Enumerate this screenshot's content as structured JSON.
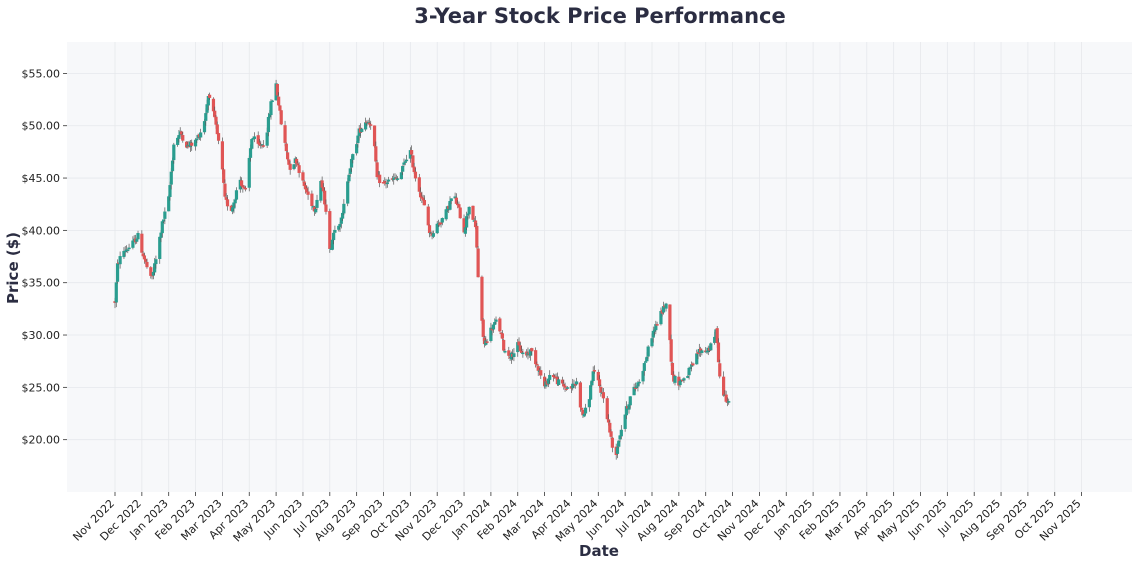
{
  "chart_data": {
    "type": "candlestick",
    "title": "3-Year Stock Price Performance",
    "xlabel": "Date",
    "ylabel": "Price ($)",
    "ylim": [
      15,
      58
    ],
    "yticks": [
      20,
      25,
      30,
      35,
      40,
      45,
      50,
      55
    ],
    "ytick_labels": [
      "$20.00",
      "$25.00",
      "$30.00",
      "$35.00",
      "$40.00",
      "$45.00",
      "$50.00",
      "$55.00"
    ],
    "xticks": [
      "Nov 2022",
      "Dec 2022",
      "Jan 2023",
      "Feb 2023",
      "Mar 2023",
      "Apr 2023",
      "May 2023",
      "Jun 2023",
      "Jul 2023",
      "Aug 2023",
      "Sep 2023",
      "Oct 2023",
      "Nov 2023",
      "Dec 2023",
      "Jan 2024",
      "Feb 2024",
      "Mar 2024",
      "Apr 2024",
      "May 2024",
      "Jun 2024",
      "Jul 2024",
      "Aug 2024",
      "Sep 2024",
      "Oct 2024",
      "Nov 2024",
      "Dec 2024",
      "Jan 2025",
      "Feb 2025",
      "Mar 2025",
      "Apr 2025",
      "May 2025",
      "Jun 2025",
      "Jul 2025",
      "Aug 2025",
      "Sep 2025",
      "Oct 2025",
      "Nov 2025"
    ],
    "grid": true,
    "up_color": "#2a9d8f",
    "down_color": "#e05555",
    "wick_color": "#555555",
    "plot_background": "#f7f8fa",
    "price_path": [
      [
        0.0,
        33.2
      ],
      [
        0.1,
        36.8
      ],
      [
        0.3,
        38.0
      ],
      [
        0.6,
        38.5
      ],
      [
        0.85,
        39.5
      ],
      [
        1.1,
        37.2
      ],
      [
        1.35,
        35.2
      ],
      [
        1.55,
        37.5
      ],
      [
        1.75,
        40.5
      ],
      [
        2.0,
        43.0
      ],
      [
        2.2,
        48.5
      ],
      [
        2.45,
        49.3
      ],
      [
        2.7,
        48.0
      ],
      [
        3.0,
        48.5
      ],
      [
        3.3,
        50.0
      ],
      [
        3.5,
        53.3
      ],
      [
        3.75,
        50.0
      ],
      [
        3.95,
        47.0
      ],
      [
        4.1,
        42.8
      ],
      [
        4.35,
        42.0
      ],
      [
        4.65,
        45.0
      ],
      [
        4.85,
        43.5
      ],
      [
        5.1,
        49.0
      ],
      [
        5.35,
        48.0
      ],
      [
        5.6,
        48.5
      ],
      [
        5.8,
        52.0
      ],
      [
        6.0,
        54.0
      ],
      [
        6.2,
        50.0
      ],
      [
        6.5,
        46.0
      ],
      [
        6.75,
        46.8
      ],
      [
        7.0,
        44.5
      ],
      [
        7.25,
        43.0
      ],
      [
        7.45,
        42.0
      ],
      [
        7.65,
        45.0
      ],
      [
        7.9,
        41.5
      ],
      [
        8.0,
        38.0
      ],
      [
        8.2,
        40.5
      ],
      [
        8.45,
        41.0
      ],
      [
        8.7,
        45.5
      ],
      [
        8.9,
        47.5
      ],
      [
        9.1,
        49.5
      ],
      [
        9.35,
        50.5
      ],
      [
        9.6,
        50.2
      ],
      [
        9.75,
        45.0
      ],
      [
        10.0,
        44.5
      ],
      [
        10.3,
        44.8
      ],
      [
        10.6,
        45.0
      ],
      [
        10.85,
        47.0
      ],
      [
        11.0,
        47.5
      ],
      [
        11.2,
        45.0
      ],
      [
        11.5,
        42.5
      ],
      [
        11.75,
        39.5
      ],
      [
        12.0,
        40.5
      ],
      [
        12.3,
        41.5
      ],
      [
        12.6,
        43.5
      ],
      [
        12.8,
        42.0
      ],
      [
        13.0,
        40.0
      ],
      [
        13.2,
        42.5
      ],
      [
        13.45,
        40.0
      ],
      [
        13.55,
        34.0
      ],
      [
        13.75,
        29.0
      ],
      [
        14.0,
        30.5
      ],
      [
        14.25,
        31.5
      ],
      [
        14.5,
        28.5
      ],
      [
        14.75,
        28.0
      ],
      [
        15.0,
        29.0
      ],
      [
        15.25,
        28.0
      ],
      [
        15.5,
        28.5
      ],
      [
        15.75,
        27.0
      ],
      [
        16.0,
        25.0
      ],
      [
        16.25,
        26.5
      ],
      [
        16.5,
        25.5
      ],
      [
        16.75,
        25.0
      ],
      [
        17.0,
        25.0
      ],
      [
        17.2,
        25.5
      ],
      [
        17.4,
        22.3
      ],
      [
        17.6,
        23.0
      ],
      [
        17.8,
        26.5
      ],
      [
        18.0,
        25.5
      ],
      [
        18.25,
        23.5
      ],
      [
        18.45,
        20.5
      ],
      [
        18.6,
        18.0
      ],
      [
        18.8,
        20.5
      ],
      [
        19.0,
        22.5
      ],
      [
        19.25,
        24.5
      ],
      [
        19.5,
        25.5
      ],
      [
        19.75,
        27.5
      ],
      [
        20.0,
        30.0
      ],
      [
        20.25,
        31.5
      ],
      [
        20.5,
        33.0
      ],
      [
        20.62,
        32.0
      ],
      [
        20.75,
        26.0
      ],
      [
        21.0,
        25.5
      ],
      [
        21.25,
        26.0
      ],
      [
        21.5,
        27.0
      ],
      [
        21.75,
        28.5
      ],
      [
        22.0,
        28.5
      ],
      [
        22.25,
        29.0
      ],
      [
        22.4,
        30.5
      ],
      [
        22.55,
        25.0
      ],
      [
        22.75,
        24.0
      ],
      [
        22.88,
        23.7
      ]
    ]
  }
}
